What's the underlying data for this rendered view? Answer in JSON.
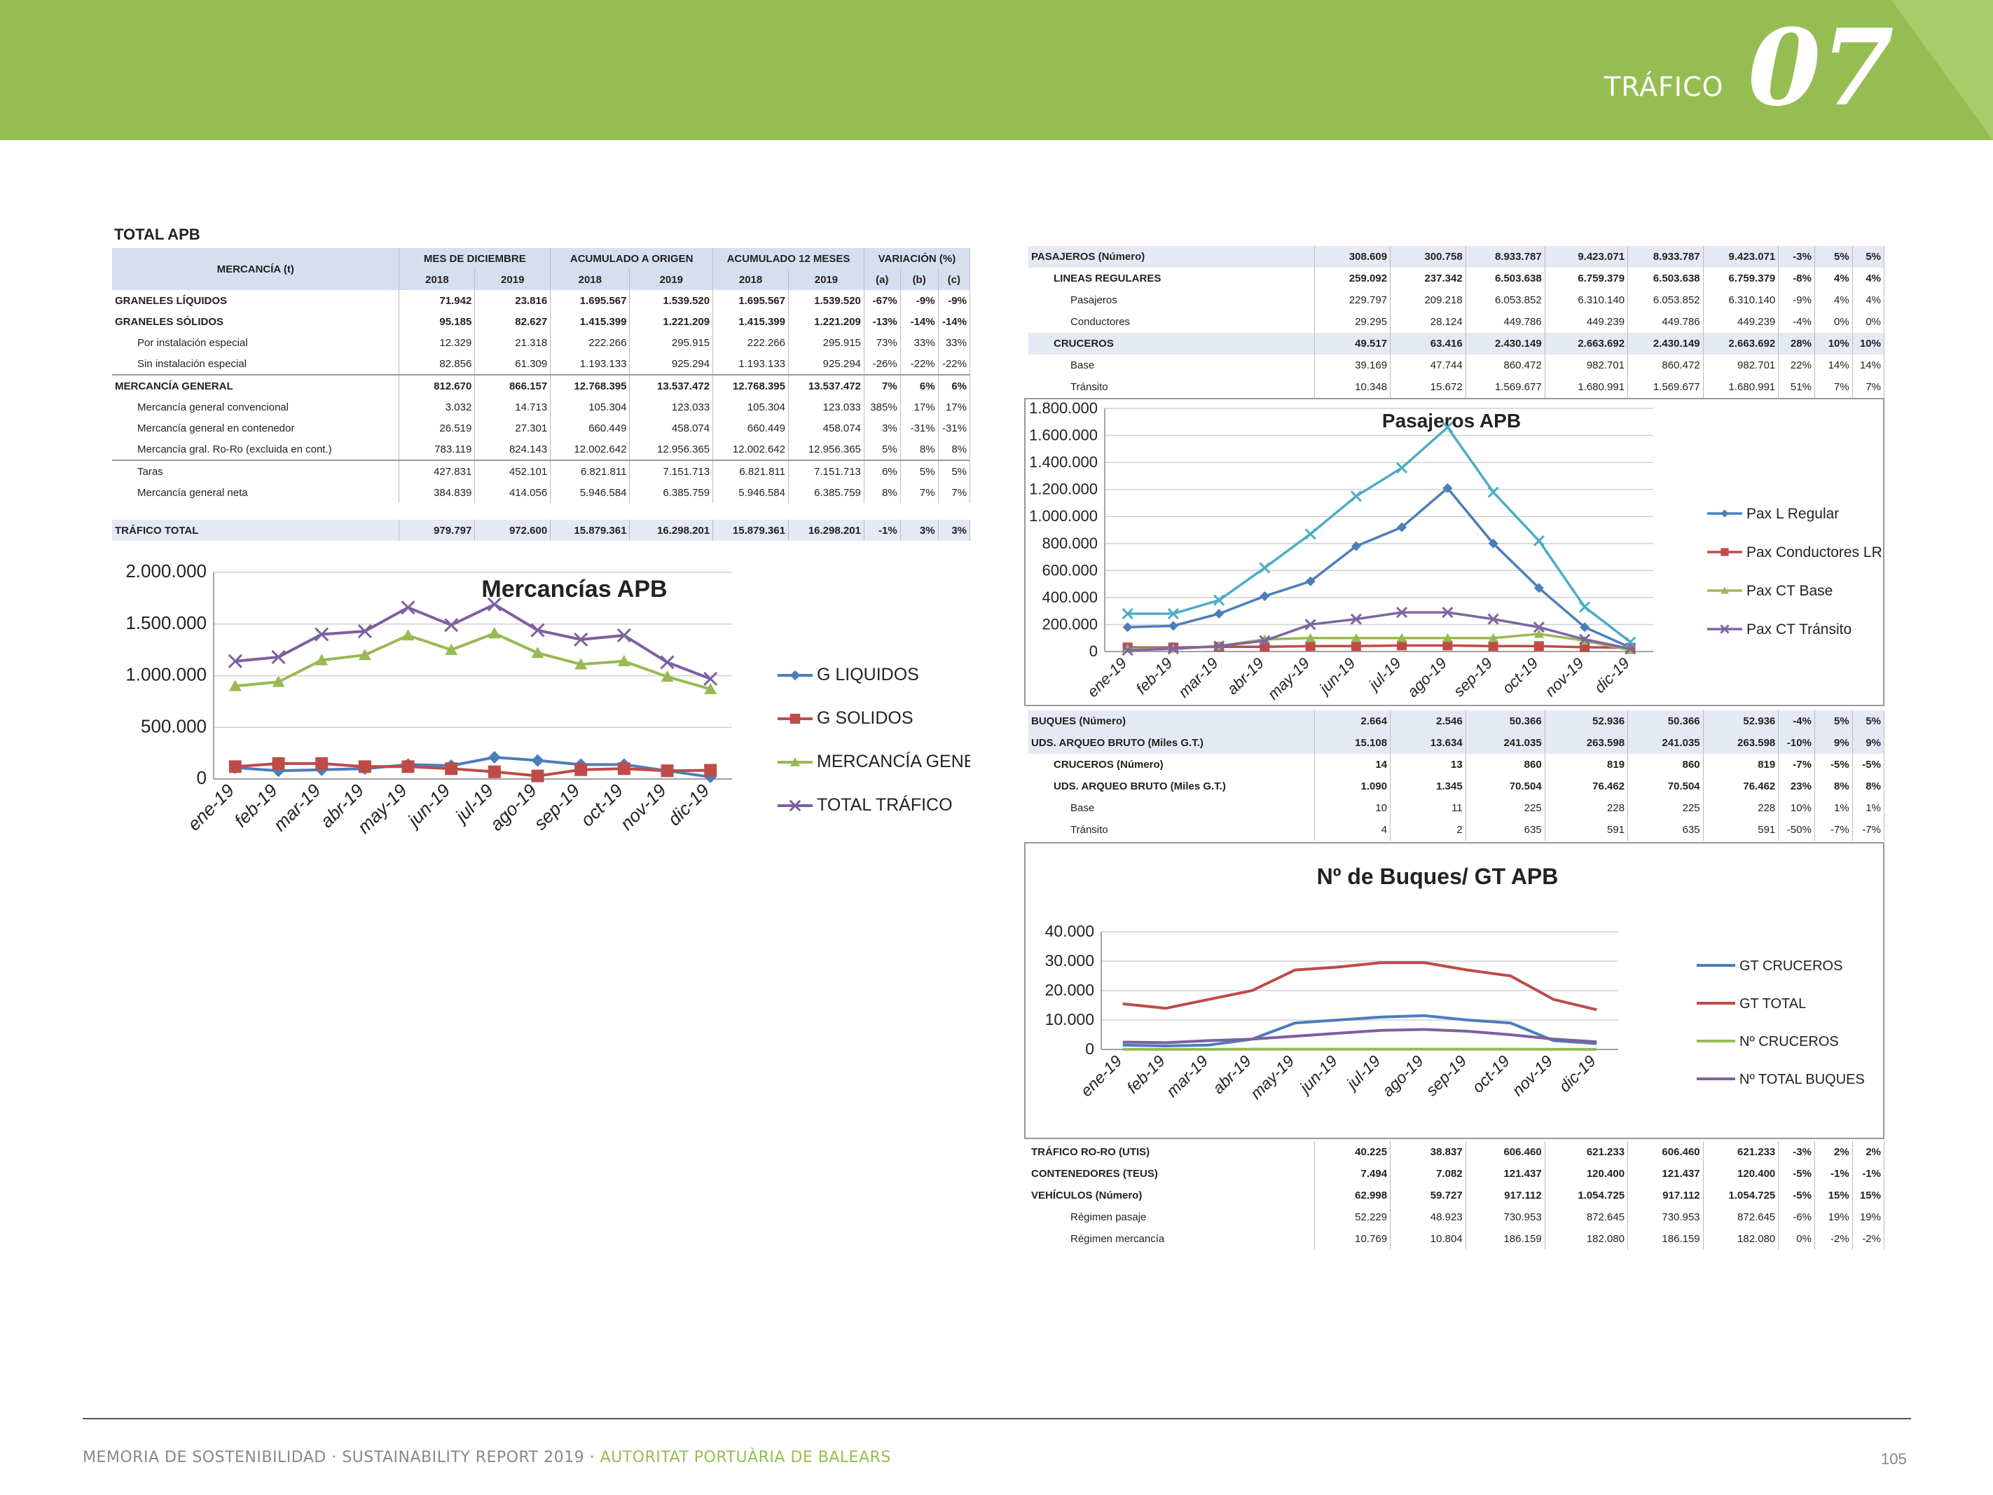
{
  "header": {
    "section": "TRÁFICO",
    "number": "07"
  },
  "table_apb": {
    "title": "TOTAL APB",
    "merc_label": "MERCANCÍA (t)",
    "groups": [
      "MES DE DICIEMBRE",
      "ACUMULADO A ORIGEN",
      "ACUMULADO 12 MESES",
      "VARIACIÓN (%)"
    ],
    "years": [
      "2018",
      "2019",
      "2018",
      "2019",
      "2018",
      "2019",
      "(a)",
      "(b)",
      "(c)"
    ],
    "rows": [
      {
        "label": "GRANELES LÍQUIDOS",
        "v": [
          "71.942",
          "23.816",
          "1.695.567",
          "1.539.520",
          "1.695.567",
          "1.539.520",
          "-67%",
          "-9%",
          "-9%"
        ]
      },
      {
        "label": "GRANELES SÓLIDOS",
        "v": [
          "95.185",
          "82.627",
          "1.415.399",
          "1.221.209",
          "1.415.399",
          "1.221.209",
          "-13%",
          "-14%",
          "-14%"
        ]
      },
      {
        "label": "Por instalación especial",
        "v": [
          "12.329",
          "21.318",
          "222.266",
          "295.915",
          "222.266",
          "295.915",
          "73%",
          "33%",
          "33%"
        ]
      },
      {
        "label": "Sin instalación especial",
        "v": [
          "82.856",
          "61.309",
          "1.193.133",
          "925.294",
          "1.193.133",
          "925.294",
          "-26%",
          "-22%",
          "-22%"
        ]
      },
      {
        "label": "MERCANCÍA GENERAL",
        "v": [
          "812.670",
          "866.157",
          "12.768.395",
          "13.537.472",
          "12.768.395",
          "13.537.472",
          "7%",
          "6%",
          "6%"
        ]
      },
      {
        "label": "Mercancía general convencional",
        "v": [
          "3.032",
          "14.713",
          "105.304",
          "123.033",
          "105.304",
          "123.033",
          "385%",
          "17%",
          "17%"
        ]
      },
      {
        "label": "Mercancía general en contenedor",
        "v": [
          "26.519",
          "27.301",
          "660.449",
          "458.074",
          "660.449",
          "458.074",
          "3%",
          "-31%",
          "-31%"
        ]
      },
      {
        "label": "Mercancía gral. Ro-Ro (excluida en cont.)",
        "v": [
          "783.119",
          "824.143",
          "12.002.642",
          "12.956.365",
          "12.002.642",
          "12.956.365",
          "5%",
          "8%",
          "8%"
        ]
      },
      {
        "label": "Taras",
        "v": [
          "427.831",
          "452.101",
          "6.821.811",
          "7.151.713",
          "6.821.811",
          "7.151.713",
          "6%",
          "5%",
          "5%"
        ]
      },
      {
        "label": "Mercancía general neta",
        "v": [
          "384.839",
          "414.056",
          "5.946.584",
          "6.385.759",
          "5.946.584",
          "6.385.759",
          "8%",
          "7%",
          "7%"
        ]
      }
    ],
    "total": {
      "label": "TRÁFICO TOTAL",
      "v": [
        "979.797",
        "972.600",
        "15.879.361",
        "16.298.201",
        "15.879.361",
        "16.298.201",
        "-1%",
        "3%",
        "3%"
      ]
    }
  },
  "table_pasajeros": {
    "rows": [
      {
        "label": "PASAJEROS (Número)",
        "v": [
          "308.609",
          "300.758",
          "8.933.787",
          "9.423.071",
          "8.933.787",
          "9.423.071",
          "-3%",
          "5%",
          "5%"
        ]
      },
      {
        "label": "LINEAS REGULARES",
        "v": [
          "259.092",
          "237.342",
          "6.503.638",
          "6.759.379",
          "6.503.638",
          "6.759.379",
          "-8%",
          "4%",
          "4%"
        ]
      },
      {
        "label": "Pasajeros",
        "v": [
          "229.797",
          "209.218",
          "6.053.852",
          "6.310.140",
          "6.053.852",
          "6.310.140",
          "-9%",
          "4%",
          "4%"
        ]
      },
      {
        "label": "Conductores",
        "v": [
          "29.295",
          "28.124",
          "449.786",
          "449.239",
          "449.786",
          "449.239",
          "-4%",
          "0%",
          "0%"
        ]
      },
      {
        "label": "CRUCEROS",
        "v": [
          "49.517",
          "63.416",
          "2.430.149",
          "2.663.692",
          "2.430.149",
          "2.663.692",
          "28%",
          "10%",
          "10%"
        ]
      },
      {
        "label": "Base",
        "v": [
          "39.169",
          "47.744",
          "860.472",
          "982.701",
          "860.472",
          "982.701",
          "22%",
          "14%",
          "14%"
        ]
      },
      {
        "label": "Tránsito",
        "v": [
          "10.348",
          "15.672",
          "1.569.677",
          "1.680.991",
          "1.569.677",
          "1.680.991",
          "51%",
          "7%",
          "7%"
        ]
      }
    ]
  },
  "table_buques": {
    "rows": [
      {
        "label": "BUQUES (Número)",
        "v": [
          "2.664",
          "2.546",
          "50.366",
          "52.936",
          "50.366",
          "52.936",
          "-4%",
          "5%",
          "5%"
        ]
      },
      {
        "label": "UDS. ARQUEO BRUTO (Miles G.T.)",
        "v": [
          "15.108",
          "13.634",
          "241.035",
          "263.598",
          "241.035",
          "263.598",
          "-10%",
          "9%",
          "9%"
        ]
      },
      {
        "label": "CRUCEROS (Número)",
        "v": [
          "14",
          "13",
          "860",
          "819",
          "860",
          "819",
          "-7%",
          "-5%",
          "-5%"
        ]
      },
      {
        "label": "UDS. ARQUEO BRUTO (Miles G.T.)",
        "v": [
          "1.090",
          "1.345",
          "70.504",
          "76.462",
          "70.504",
          "76.462",
          "23%",
          "8%",
          "8%"
        ]
      },
      {
        "label": "Base",
        "v": [
          "10",
          "11",
          "225",
          "228",
          "225",
          "228",
          "10%",
          "1%",
          "1%"
        ]
      },
      {
        "label": "Tránsito",
        "v": [
          "4",
          "2",
          "635",
          "591",
          "635",
          "591",
          "-50%",
          "-7%",
          "-7%"
        ]
      }
    ]
  },
  "table_roro": {
    "rows": [
      {
        "label": "TRÁFICO RO-RO (UTIS)",
        "v": [
          "40.225",
          "38.837",
          "606.460",
          "621.233",
          "606.460",
          "621.233",
          "-3%",
          "2%",
          "2%"
        ]
      },
      {
        "label": "CONTENEDORES (TEUS)",
        "v": [
          "7.494",
          "7.082",
          "121.437",
          "120.400",
          "121.437",
          "120.400",
          "-5%",
          "-1%",
          "-1%"
        ]
      },
      {
        "label": "VEHÍCULOS (Número)",
        "v": [
          "62.998",
          "59.727",
          "917.112",
          "1.054.725",
          "917.112",
          "1.054.725",
          "-5%",
          "15%",
          "15%"
        ]
      },
      {
        "label": "Régimen pasaje",
        "v": [
          "52.229",
          "48.923",
          "730.953",
          "872.645",
          "730.953",
          "872.645",
          "-6%",
          "19%",
          "19%"
        ]
      },
      {
        "label": "Régimen mercancía",
        "v": [
          "10.769",
          "10.804",
          "186.159",
          "182.080",
          "186.159",
          "182.080",
          "0%",
          "-2%",
          "-2%"
        ]
      }
    ]
  },
  "chart_data": [
    {
      "type": "line",
      "title": "Mercancías APB",
      "categories": [
        "ene-19",
        "feb-19",
        "mar-19",
        "abr-19",
        "may-19",
        "jun-19",
        "jul-19",
        "ago-19",
        "sep-19",
        "oct-19",
        "nov-19",
        "dic-19"
      ],
      "ylim": [
        0,
        2000000
      ],
      "yticks": [
        "0",
        "500.000",
        "1.000.000",
        "1.500.000",
        "2.000.000"
      ],
      "legend_position": "right",
      "series": [
        {
          "name": "G LIQUIDOS",
          "color": "#4a7ebb",
          "marker": "diamond",
          "values": [
            110000,
            80000,
            90000,
            100000,
            140000,
            130000,
            210000,
            180000,
            140000,
            140000,
            80000,
            20000
          ]
        },
        {
          "name": "G SOLIDOS",
          "color": "#be4b48",
          "marker": "square",
          "values": [
            120000,
            150000,
            150000,
            120000,
            120000,
            100000,
            70000,
            30000,
            90000,
            100000,
            80000,
            85000
          ]
        },
        {
          "name": "MERCANCÍA GENERAL",
          "color": "#98b954",
          "marker": "triangle",
          "values": [
            900000,
            940000,
            1150000,
            1200000,
            1390000,
            1250000,
            1410000,
            1220000,
            1110000,
            1140000,
            990000,
            870000
          ]
        },
        {
          "name": "TOTAL TRÁFICO",
          "color": "#7d60a0",
          "marker": "x",
          "values": [
            1140000,
            1180000,
            1400000,
            1430000,
            1660000,
            1490000,
            1690000,
            1440000,
            1350000,
            1390000,
            1130000,
            970000
          ]
        }
      ]
    },
    {
      "type": "line",
      "title": "Pasajeros APB",
      "categories": [
        "ene-19",
        "feb-19",
        "mar-19",
        "abr-19",
        "may-19",
        "jun-19",
        "jul-19",
        "ago-19",
        "sep-19",
        "oct-19",
        "nov-19",
        "dic-19"
      ],
      "ylim": [
        0,
        1800000
      ],
      "yticks": [
        "0",
        "200.000",
        "400.000",
        "600.000",
        "800.000",
        "1.000.000",
        "1.200.000",
        "1.400.000",
        "1.600.000",
        "1.800.000"
      ],
      "legend_position": "right",
      "series": [
        {
          "name": "Pax L Regular",
          "color": "#4a7ebb",
          "marker": "diamond",
          "values": [
            180000,
            190000,
            280000,
            410000,
            520000,
            780000,
            920000,
            1210000,
            800000,
            470000,
            180000,
            30000
          ]
        },
        {
          "name": "Pax Conductores LR",
          "color": "#be4b48",
          "marker": "square",
          "values": [
            30000,
            30000,
            35000,
            35000,
            40000,
            40000,
            45000,
            45000,
            40000,
            40000,
            32000,
            28000
          ]
        },
        {
          "name": "Pax CT Base",
          "color": "#98b954",
          "marker": "triangle",
          "values": [
            20000,
            20000,
            40000,
            90000,
            100000,
            100000,
            100000,
            100000,
            100000,
            130000,
            80000,
            10000
          ]
        },
        {
          "name": "Pax CT Tránsito",
          "color": "#8064a2",
          "marker": "x",
          "values": [
            10000,
            20000,
            40000,
            80000,
            200000,
            240000,
            290000,
            290000,
            240000,
            180000,
            90000,
            20000
          ]
        },
        {
          "name": "",
          "color": "#4bacc6",
          "marker": "x",
          "values": [
            280000,
            280000,
            380000,
            620000,
            870000,
            1150000,
            1360000,
            1660000,
            1180000,
            820000,
            330000,
            70000
          ]
        }
      ]
    },
    {
      "type": "line",
      "title": "Nº de Buques/ GT APB",
      "categories": [
        "ene-19",
        "feb-19",
        "mar-19",
        "abr-19",
        "may-19",
        "jun-19",
        "jul-19",
        "ago-19",
        "sep-19",
        "oct-19",
        "nov-19",
        "dic-19"
      ],
      "ylim": [
        0,
        40000
      ],
      "yticks": [
        "0",
        "10.000",
        "20.000",
        "30.000",
        "40.000"
      ],
      "legend_position": "right",
      "series": [
        {
          "name": "GT CRUCEROS",
          "color": "#4a7ebb",
          "values": [
            1500,
            1200,
            1500,
            3500,
            9000,
            10000,
            11000,
            11500,
            10000,
            9000,
            3000,
            2000
          ]
        },
        {
          "name": "GT TOTAL",
          "color": "#be4b48",
          "values": [
            15500,
            14000,
            17000,
            20000,
            27000,
            28000,
            29500,
            29500,
            27000,
            25000,
            17000,
            13500
          ]
        },
        {
          "name": "Nº CRUCEROS",
          "color": "#98b954",
          "values": [
            50,
            40,
            40,
            80,
            90,
            100,
            100,
            100,
            100,
            90,
            60,
            20
          ]
        },
        {
          "name": "Nº TOTAL BUQUES",
          "color": "#7d60a0",
          "values": [
            2500,
            2300,
            3000,
            3500,
            4500,
            5500,
            6500,
            6800,
            6200,
            5000,
            3500,
            2600
          ]
        }
      ]
    }
  ],
  "footer": {
    "part1": "MEMORIA DE SOSTENIBILIDAD · SUSTAINABILITY REPORT 2019 · ",
    "part2": "AUTORITAT PORTUÀRIA DE BALEARS",
    "page": "105"
  }
}
